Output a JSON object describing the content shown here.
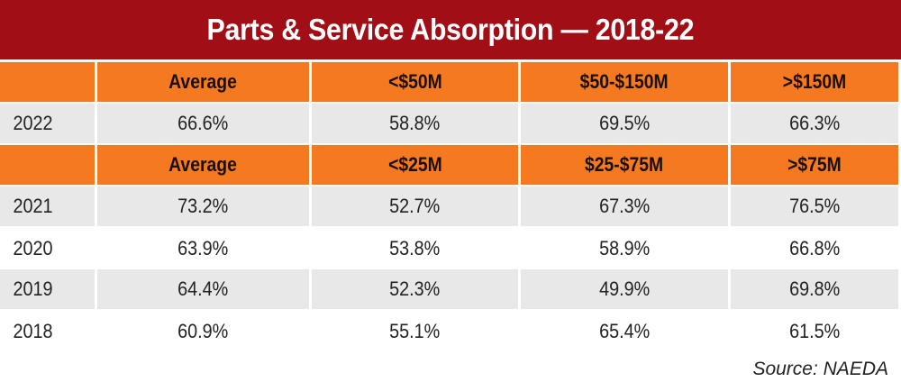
{
  "title": "Parts & Service Absorption — 2018-22",
  "colors": {
    "title_bg": "#a20e16",
    "header_bg": "#f47920",
    "shaded_row": "#e8e8e8"
  },
  "header_2022": [
    "",
    "Average",
    "<$50M",
    "$50-$150M",
    ">$150M"
  ],
  "row_2022": {
    "year": "2022",
    "values": [
      "66.6%",
      "58.8%",
      "69.5%",
      "66.3%"
    ]
  },
  "header_prior": [
    "",
    "Average",
    "<$25M",
    "$25-$75M",
    ">$75M"
  ],
  "rows_prior": [
    {
      "year": "2021",
      "values": [
        "73.2%",
        "52.7%",
        "67.3%",
        "76.5%"
      ]
    },
    {
      "year": "2020",
      "values": [
        "63.9%",
        "53.8%",
        "58.9%",
        "66.8%"
      ]
    },
    {
      "year": "2019",
      "values": [
        "64.4%",
        "52.3%",
        "49.9%",
        "69.8%"
      ]
    },
    {
      "year": "2018",
      "values": [
        "60.9%",
        "55.1%",
        "65.4%",
        "61.5%"
      ]
    }
  ],
  "source": "Source: NAEDA"
}
